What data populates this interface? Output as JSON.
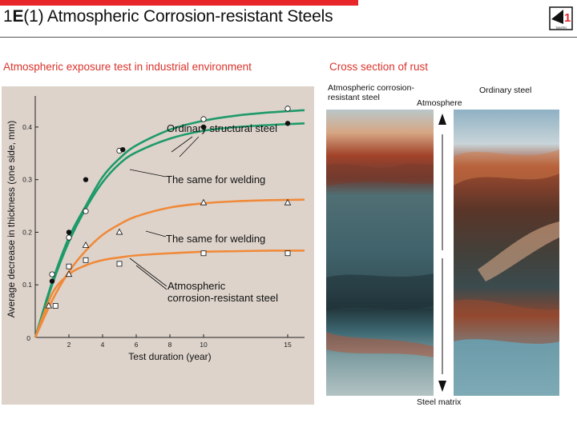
{
  "header": {
    "title_prefix_1": "1",
    "title_prefix_2": "E",
    "title_prefix_3": "(1)",
    "title": "Atmospheric Corrosion-resistant Steels",
    "logo_text": "TANTEI",
    "accent_color": "#e8262a"
  },
  "chart_section": {
    "heading": "Atmospheric exposure test in industrial environment"
  },
  "rust_section": {
    "heading": "Cross section of rust",
    "left_photo_label_line1": "Atmospheric corrosion-",
    "left_photo_label_line2": "resistant steel",
    "right_photo_label": "Ordinary steel",
    "top_arrow_label": "Atmosphere",
    "bottom_arrow_label": "Steel matrix"
  },
  "chart_data": {
    "type": "line",
    "title": "",
    "xlabel": "Test duration (year)",
    "ylabel": "Average decrease in thickness (one side, mm)",
    "xlim": [
      0,
      16
    ],
    "ylim": [
      0,
      0.45
    ],
    "x_ticks": [
      2,
      4,
      6,
      8,
      10,
      15
    ],
    "y_ticks": [
      0.1,
      0.2,
      0.3,
      0.4
    ],
    "origin_label": "0",
    "background": "#ddd3cb",
    "series": [
      {
        "name": "Ordinary structural steel",
        "color": "#1f9a6a",
        "marker": "open-circle",
        "points": [
          [
            1,
            0.12
          ],
          [
            2,
            0.19
          ],
          [
            3,
            0.24
          ],
          [
            5,
            0.355
          ],
          [
            10,
            0.415
          ],
          [
            15,
            0.435
          ]
        ],
        "curve": [
          [
            0,
            0
          ],
          [
            1,
            0.105
          ],
          [
            2,
            0.19
          ],
          [
            3,
            0.25
          ],
          [
            4,
            0.305
          ],
          [
            5,
            0.34
          ],
          [
            6,
            0.365
          ],
          [
            8,
            0.395
          ],
          [
            10,
            0.412
          ],
          [
            12,
            0.422
          ],
          [
            14,
            0.428
          ],
          [
            16,
            0.432
          ]
        ]
      },
      {
        "name": "The same for welding",
        "color": "#1f9a6a",
        "marker": "filled-circle",
        "points": [
          [
            1,
            0.107
          ],
          [
            2,
            0.2
          ],
          [
            3,
            0.3
          ],
          [
            5.2,
            0.357
          ],
          [
            10,
            0.4
          ],
          [
            15,
            0.407
          ]
        ],
        "curve": [
          [
            0,
            0
          ],
          [
            1,
            0.1
          ],
          [
            2,
            0.182
          ],
          [
            3,
            0.245
          ],
          [
            4,
            0.295
          ],
          [
            5,
            0.33
          ],
          [
            6,
            0.352
          ],
          [
            8,
            0.378
          ],
          [
            10,
            0.393
          ],
          [
            12,
            0.4
          ],
          [
            14,
            0.404
          ],
          [
            16,
            0.407
          ]
        ]
      },
      {
        "name": "The same for welding",
        "color": "#f08a3a",
        "marker": "open-triangle",
        "points": [
          [
            0.8,
            0.06
          ],
          [
            2,
            0.12
          ],
          [
            3,
            0.175
          ],
          [
            5,
            0.2
          ],
          [
            10,
            0.256
          ],
          [
            15,
            0.256
          ]
        ],
        "curve": [
          [
            0,
            0
          ],
          [
            1,
            0.07
          ],
          [
            2,
            0.125
          ],
          [
            3,
            0.165
          ],
          [
            4,
            0.195
          ],
          [
            5,
            0.215
          ],
          [
            6,
            0.23
          ],
          [
            8,
            0.247
          ],
          [
            10,
            0.255
          ],
          [
            12,
            0.259
          ],
          [
            14,
            0.261
          ],
          [
            16,
            0.262
          ]
        ]
      },
      {
        "name": "Atmospheric corrosion-resistant steel",
        "color": "#f08a3a",
        "marker": "open-square",
        "points": [
          [
            1.2,
            0.06
          ],
          [
            2,
            0.135
          ],
          [
            3,
            0.147
          ],
          [
            5,
            0.14
          ],
          [
            10,
            0.16
          ],
          [
            15,
            0.16
          ]
        ],
        "curve": [
          [
            0,
            0
          ],
          [
            1,
            0.083
          ],
          [
            2,
            0.12
          ],
          [
            3,
            0.137
          ],
          [
            4,
            0.147
          ],
          [
            5,
            0.152
          ],
          [
            6,
            0.156
          ],
          [
            8,
            0.16
          ],
          [
            10,
            0.163
          ],
          [
            12,
            0.164
          ],
          [
            14,
            0.165
          ],
          [
            16,
            0.165
          ]
        ]
      }
    ],
    "labels": [
      {
        "text": "Ordinary structural steel",
        "series": [
          0,
          1
        ]
      },
      {
        "text": "The same for welding",
        "series": [
          1
        ]
      },
      {
        "text": "The same for welding",
        "series": [
          2
        ]
      },
      {
        "text_line1": "Atmospheric",
        "text_line2": "corrosion-resistant steel",
        "series": [
          3
        ]
      }
    ]
  }
}
